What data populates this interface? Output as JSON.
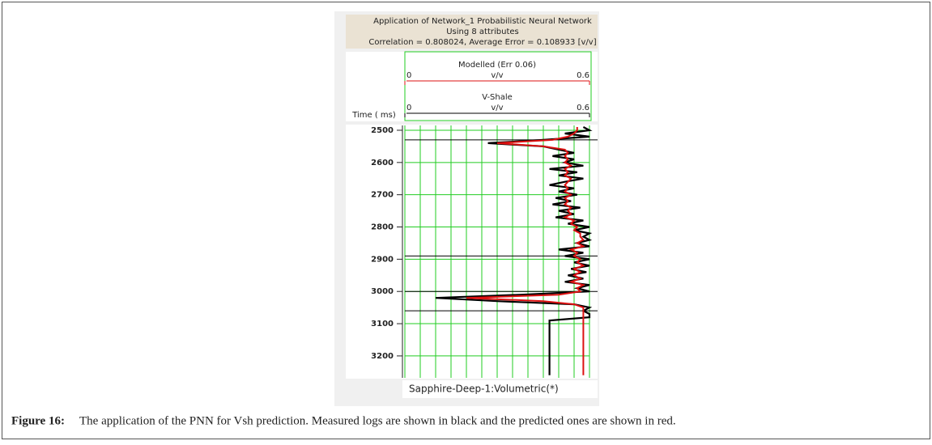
{
  "chart_data": {
    "type": "line",
    "title": "Application of Network_1 Probabilistic Neural Network",
    "subtitle": "Using 8 attributes",
    "annotation": "Correlation = 0.808024, Average Error = 0.108933 [v/v]",
    "ylabel": "Time ( ms)",
    "xunit": "v/v",
    "ylim": [
      2485,
      3268
    ],
    "yticks": [
      2500,
      2600,
      2700,
      2800,
      2900,
      3000,
      3100,
      3200
    ],
    "xlim": [
      0,
      0.6
    ],
    "xticks": [
      0,
      0.6
    ],
    "xgrid": [
      0,
      0.05,
      0.1,
      0.15,
      0.2,
      0.25,
      0.3,
      0.35,
      0.4,
      0.45,
      0.5,
      0.55,
      0.6
    ],
    "grid": true,
    "grid_color": "#22cc22",
    "horizons": [
      2530,
      2890,
      3000,
      3060
    ],
    "x": [
      2490,
      2500,
      2510,
      2520,
      2530,
      2540,
      2550,
      2560,
      2570,
      2580,
      2590,
      2600,
      2610,
      2620,
      2630,
      2640,
      2650,
      2660,
      2670,
      2680,
      2690,
      2700,
      2710,
      2720,
      2730,
      2740,
      2750,
      2760,
      2770,
      2780,
      2790,
      2800,
      2810,
      2820,
      2830,
      2840,
      2850,
      2860,
      2870,
      2880,
      2890,
      2900,
      2910,
      2920,
      2930,
      2940,
      2950,
      2960,
      2970,
      2980,
      2990,
      3000,
      3010,
      3020,
      3030,
      3040,
      3050,
      3060,
      3070,
      3080,
      3090,
      3100,
      3260
    ],
    "series": [
      {
        "name": "Modelled (Err 0.06)",
        "color": "#dd1111",
        "values": [
          0.56,
          0.56,
          0.55,
          0.53,
          0.48,
          0.3,
          0.45,
          0.52,
          0.53,
          0.52,
          0.53,
          0.52,
          0.54,
          0.52,
          0.53,
          0.52,
          0.54,
          0.53,
          0.52,
          0.53,
          0.52,
          0.54,
          0.52,
          0.53,
          0.52,
          0.54,
          0.53,
          0.54,
          0.52,
          0.55,
          0.54,
          0.56,
          0.55,
          0.57,
          0.57,
          0.58,
          0.56,
          0.58,
          0.54,
          0.56,
          0.55,
          0.57,
          0.56,
          0.58,
          0.55,
          0.57,
          0.55,
          0.57,
          0.54,
          0.58,
          0.56,
          0.57,
          0.5,
          0.2,
          0.45,
          0.55,
          0.58,
          0.58,
          0.58,
          0.58,
          0.58,
          0.58,
          0.58
        ]
      },
      {
        "name": "V-Shale",
        "color": "#000000",
        "values": [
          0.58,
          0.6,
          0.52,
          0.6,
          0.45,
          0.27,
          0.45,
          0.5,
          0.55,
          0.48,
          0.55,
          0.52,
          0.58,
          0.47,
          0.56,
          0.5,
          0.58,
          0.52,
          0.47,
          0.55,
          0.5,
          0.56,
          0.49,
          0.54,
          0.48,
          0.57,
          0.5,
          0.55,
          0.49,
          0.58,
          0.53,
          0.6,
          0.55,
          0.6,
          0.58,
          0.6,
          0.56,
          0.6,
          0.5,
          0.58,
          0.52,
          0.6,
          0.55,
          0.6,
          0.54,
          0.59,
          0.53,
          0.58,
          0.52,
          0.6,
          0.56,
          0.6,
          0.38,
          0.1,
          0.3,
          0.55,
          0.6,
          0.58,
          0.6,
          0.6,
          0.47,
          0.47,
          0.47
        ]
      }
    ],
    "footer": "Sapphire-Deep-1:Volumetric(*)"
  },
  "caption": {
    "label": "Figure 16:",
    "text": "The application of the PNN for Vsh prediction. Measured logs are shown in black and the predicted ones are shown in red."
  }
}
